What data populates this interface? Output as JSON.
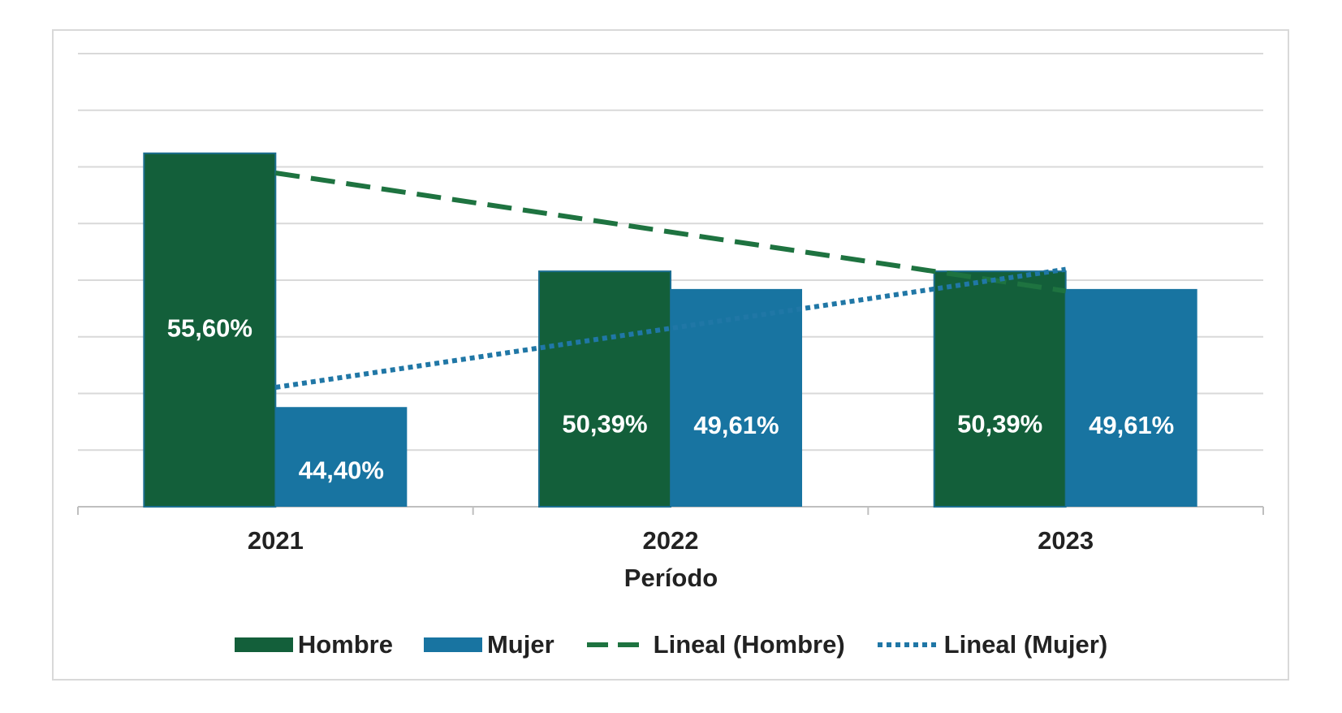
{
  "chart_data": {
    "type": "bar",
    "xlabel": "Período",
    "ylabel": "",
    "categories": [
      "2021",
      "2022",
      "2023"
    ],
    "ylim": [
      40,
      60
    ],
    "grid": true,
    "legend_position": "bottom",
    "series": [
      {
        "name": "Hombre",
        "color": "#135f3a",
        "values": [
          55.6,
          50.39,
          50.39
        ],
        "labels": [
          "55,60%",
          "50,39%",
          "50,39%"
        ]
      },
      {
        "name": "Mujer",
        "color": "#1874a1",
        "values": [
          44.4,
          49.61,
          49.61
        ],
        "labels": [
          "44,40%",
          "49,61%",
          "49,61%"
        ]
      }
    ],
    "trendlines": [
      {
        "name": "Lineal (Hombre)",
        "series": "Hombre",
        "style": "dashed",
        "color": "#1e7340"
      },
      {
        "name": "Lineal (Mujer)",
        "series": "Mujer",
        "style": "dotted",
        "color": "#2077a6"
      }
    ]
  }
}
